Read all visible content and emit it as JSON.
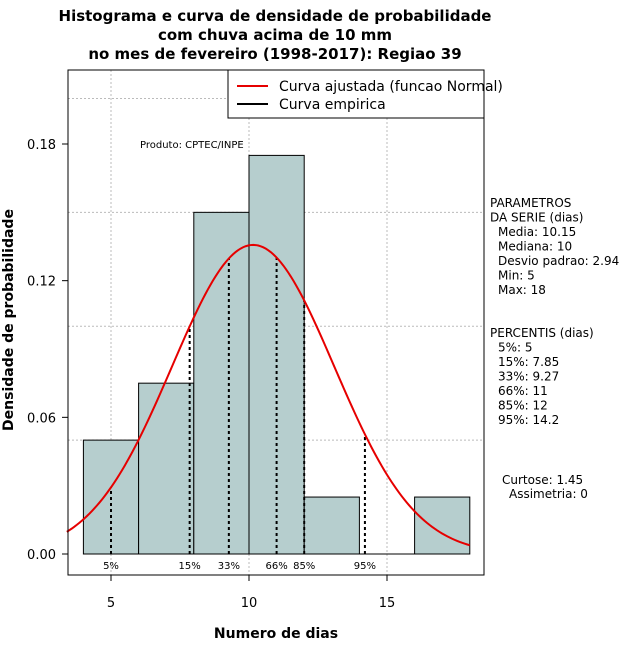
{
  "chart_data": {
    "type": "bar",
    "title_lines": [
      "Histograma e curva de densidade de probabilidade",
      "com chuva acima de 10 mm",
      "no mes de fevereiro (1998-2017): Regiao 39"
    ],
    "xlabel": "Numero de dias",
    "ylabel": "Densidade de probabilidade",
    "xlim": [
      3.4,
      18.6
    ],
    "ylim": [
      0,
      0.21
    ],
    "x_ticks": [
      5,
      10,
      15
    ],
    "y_ticks": [
      0.0,
      0.06,
      0.12,
      0.18
    ],
    "y_tick_labels": [
      "0.00",
      "0.06",
      "0.12",
      "0.18"
    ],
    "x_grid": [
      5,
      10,
      15
    ],
    "y_grid": [
      0.05,
      0.1,
      0.15,
      0.2
    ],
    "bins": [
      {
        "from": 4,
        "to": 6,
        "density": 0.05
      },
      {
        "from": 6,
        "to": 8,
        "density": 0.075
      },
      {
        "from": 8,
        "to": 10,
        "density": 0.15
      },
      {
        "from": 10,
        "to": 12,
        "density": 0.175
      },
      {
        "from": 12,
        "to": 14,
        "density": 0.025
      },
      {
        "from": 14,
        "to": 16,
        "density": 0.0
      },
      {
        "from": 16,
        "to": 18,
        "density": 0.025
      }
    ],
    "normal_curve": {
      "mean": 10.15,
      "sd": 2.94,
      "x_from": 3.4,
      "x_to": 18.0
    },
    "percentile_lines": [
      {
        "label": "5%",
        "x": 5
      },
      {
        "label": "15%",
        "x": 7.85
      },
      {
        "label": "33%",
        "x": 9.27
      },
      {
        "label": "66%",
        "x": 11
      },
      {
        "label": "85%",
        "x": 12
      },
      {
        "label": "95%",
        "x": 14.2
      }
    ],
    "legend": [
      {
        "label": "Curva ajustada (funcao Normal)",
        "color": "#e60000"
      },
      {
        "label": "Curva empirica",
        "color": "#000000"
      }
    ],
    "product_note": "Produto: CPTEC/INPE",
    "bar_fill": "#b6cece",
    "curve_color": "#e60000",
    "grid_color": "#bbbbbb"
  },
  "side_panel": {
    "parametros": [
      "PARAMETROS",
      "DA SERIE (dias)",
      "Media: 10.15",
      "Mediana: 10",
      "Desvio padrao: 2.94",
      "Min: 5",
      "Max: 18"
    ],
    "percentis": [
      "PERCENTIS (dias)",
      "5%: 5",
      "15%: 7.85",
      "33%: 9.27",
      "66%: 11",
      "85%: 12",
      "95%: 14.2"
    ],
    "curtose": "Curtose: 1.45",
    "assimetria": "Assimetria: 0"
  }
}
